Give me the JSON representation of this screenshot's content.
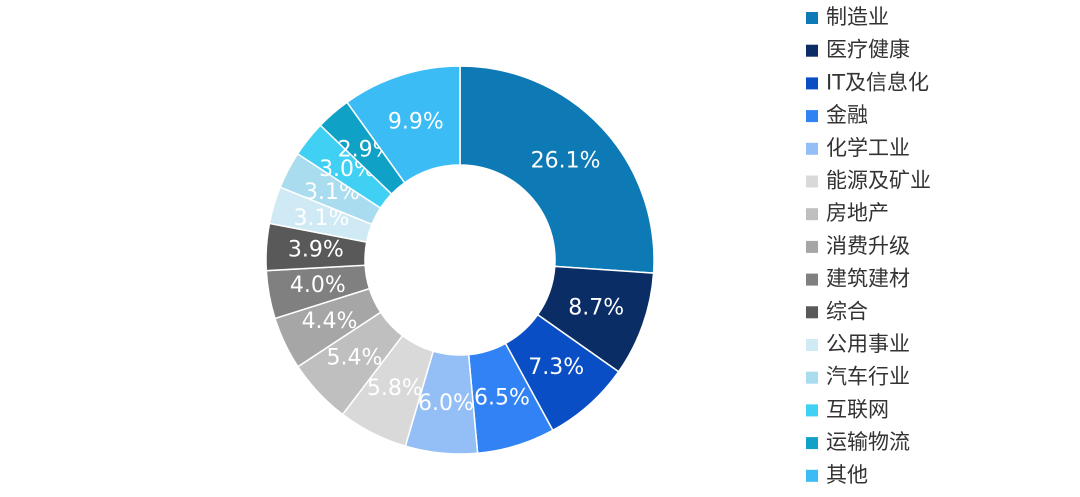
{
  "chart_data": {
    "type": "pie",
    "categories": [
      "制造业",
      "医疗健康",
      "IT及信息化",
      "金融",
      "化学工业",
      "能源及矿业",
      "房地产",
      "消费升级",
      "建筑建材",
      "综合",
      "公用事业",
      "汽车行业",
      "互联网",
      "运输物流",
      "其他"
    ],
    "values": [
      26.1,
      8.7,
      7.3,
      6.5,
      6.0,
      5.8,
      5.4,
      4.4,
      4.0,
      3.9,
      3.1,
      3.1,
      3.0,
      2.9,
      9.9
    ],
    "value_labels": [
      "26.1%",
      "8.7%",
      "7.3%",
      "6.5%",
      "6.0%",
      "5.8%",
      "5.4%",
      "4.4%",
      "4.0%",
      "3.9%",
      "3.1%",
      "3.1%",
      "3.0%",
      "2.9%",
      "9.9%"
    ],
    "colors": [
      "#0d7ab6",
      "#0a2d66",
      "#0a4ec6",
      "#3182f4",
      "#94bff6",
      "#d9d9d9",
      "#bfbfbf",
      "#a6a6a6",
      "#808080",
      "#595959",
      "#cfeaf5",
      "#a9dcee",
      "#40d0f4",
      "#0fa2c6",
      "#3cbcf4"
    ],
    "donut": true
  }
}
